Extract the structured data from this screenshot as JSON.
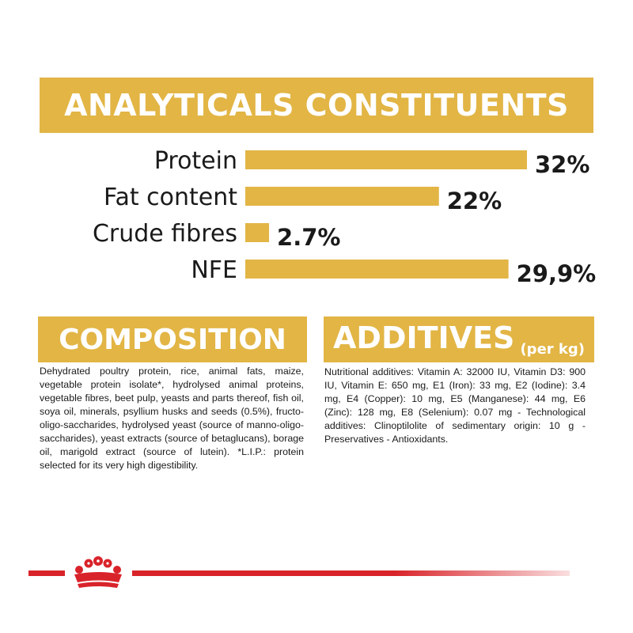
{
  "colors": {
    "gold": "#e2b545",
    "text": "#1a1a1a",
    "brand_red": "#d9232a"
  },
  "header": {
    "title": "ANALYTICALS CONSTITUENTS"
  },
  "chart_data": {
    "type": "bar",
    "orientation": "horizontal",
    "title": "ANALYTICALS CONSTITUENTS",
    "categories": [
      "Protein",
      "Fat content",
      "Crude fibres",
      "NFE"
    ],
    "values": [
      32,
      22,
      2.7,
      29.9
    ],
    "value_labels": [
      "32%",
      "22%",
      "2.7%",
      "29,9%"
    ],
    "unit": "%",
    "xlim": [
      0,
      32
    ],
    "grid": false,
    "legend": "none",
    "bar_color": "#e2b545"
  },
  "composition": {
    "title": "COMPOSITION",
    "text": "Dehydrated poultry protein, rice, animal fats, maize, vegetable protein isolate*, hydrolysed animal proteins, vegetable fibres, beet pulp, yeasts and parts thereof, fish oil, soya oil, minerals, psyllium husks and seeds (0.5%), fructo-oligo-saccharides, hydrolysed yeast (source of manno-oligo-saccharides), yeast extracts (source of betaglucans), borage oil, marigold extract (source of lutein). *L.I.P.: protein selected for its very high digestibility."
  },
  "additives": {
    "title": "ADDITIVES",
    "unit_label": "(per kg)",
    "text": "Nutritional additives: Vitamin A: 32000 IU, Vitamin D3: 900 IU, Vitamin E: 650 mg, E1 (Iron): 33 mg, E2 (Iodine): 3.4 mg, E4 (Copper): 10 mg, E5 (Manganese): 44 mg, E6 (Zinc): 128 mg, E8 (Selenium): 0.07 mg - Technological additives: Clinoptilolite of sedimentary origin: 10 g - Preservatives - Antioxidants."
  },
  "footer": {
    "logo_icon": "royal-canin-crown-icon"
  }
}
